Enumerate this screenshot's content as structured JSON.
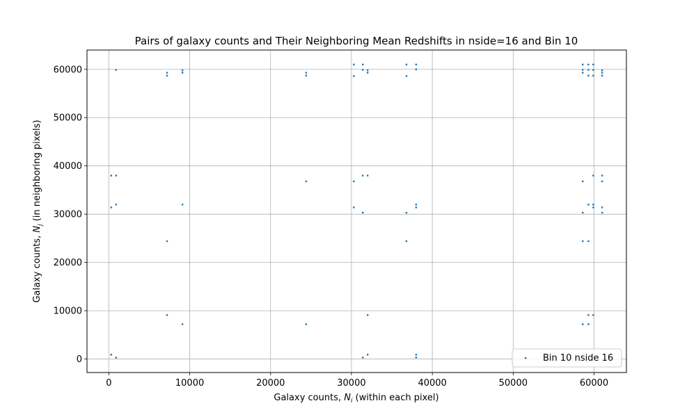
{
  "chart_data": {
    "type": "scatter",
    "title": "Pairs of galaxy counts and Their Neighboring Mean Redshifts in nside=16 and Bin 10",
    "xlabel": {
      "prefix": "Galaxy counts, ",
      "symbol": "N",
      "sub": "i",
      "suffix": " (within each pixel)"
    },
    "ylabel": {
      "prefix": "Galaxy counts, ",
      "symbol": "N",
      "sub": "j",
      "suffix": " (in neighboring pixels)"
    },
    "xlim": [
      -2700,
      64000
    ],
    "ylim": [
      -2800,
      64000
    ],
    "xticks": [
      0,
      10000,
      20000,
      30000,
      40000,
      50000,
      60000
    ],
    "yticks": [
      0,
      10000,
      20000,
      30000,
      40000,
      50000,
      60000
    ],
    "grid": true,
    "legend_position": "lower-right",
    "series": [
      {
        "name": "Bin 10 nside 16",
        "color": "#1f77b4",
        "points": [
          [
            900,
            59900
          ],
          [
            7200,
            59300
          ],
          [
            7200,
            58700
          ],
          [
            9100,
            59800
          ],
          [
            9100,
            59300
          ],
          [
            24400,
            59300
          ],
          [
            24400,
            58700
          ],
          [
            30300,
            61000
          ],
          [
            30300,
            58600
          ],
          [
            31400,
            61000
          ],
          [
            31400,
            59900
          ],
          [
            32000,
            59800
          ],
          [
            32000,
            59300
          ],
          [
            36800,
            61000
          ],
          [
            36800,
            58600
          ],
          [
            38000,
            61000
          ],
          [
            38000,
            60000
          ],
          [
            58600,
            61000
          ],
          [
            58600,
            59900
          ],
          [
            58600,
            59300
          ],
          [
            59300,
            61000
          ],
          [
            59300,
            59900
          ],
          [
            59300,
            58700
          ],
          [
            59900,
            61000
          ],
          [
            59900,
            59900
          ],
          [
            59900,
            58700
          ],
          [
            61000,
            59800
          ],
          [
            61000,
            59300
          ],
          [
            61000,
            58700
          ],
          [
            300,
            38000
          ],
          [
            900,
            38000
          ],
          [
            300,
            31400
          ],
          [
            900,
            32000
          ],
          [
            9100,
            32000
          ],
          [
            7200,
            24400
          ],
          [
            24400,
            36800
          ],
          [
            30300,
            36800
          ],
          [
            30300,
            31400
          ],
          [
            31400,
            38000
          ],
          [
            31400,
            30300
          ],
          [
            32000,
            38000
          ],
          [
            36800,
            30300
          ],
          [
            36800,
            24400
          ],
          [
            38000,
            32000
          ],
          [
            38000,
            31400
          ],
          [
            58600,
            36800
          ],
          [
            58600,
            30300
          ],
          [
            58600,
            24400
          ],
          [
            59300,
            32000
          ],
          [
            59300,
            24400
          ],
          [
            59900,
            38000
          ],
          [
            59900,
            32000
          ],
          [
            59900,
            31400
          ],
          [
            61000,
            38000
          ],
          [
            61000,
            36800
          ],
          [
            61000,
            31400
          ],
          [
            61000,
            30300
          ],
          [
            7200,
            9100
          ],
          [
            9100,
            7200
          ],
          [
            24400,
            7200
          ],
          [
            32000,
            9100
          ],
          [
            59300,
            9100
          ],
          [
            59900,
            9100
          ],
          [
            58600,
            7200
          ],
          [
            59300,
            7200
          ],
          [
            300,
            900
          ],
          [
            900,
            300
          ],
          [
            31400,
            300
          ],
          [
            32000,
            900
          ],
          [
            38000,
            900
          ],
          [
            38000,
            300
          ]
        ]
      }
    ]
  }
}
